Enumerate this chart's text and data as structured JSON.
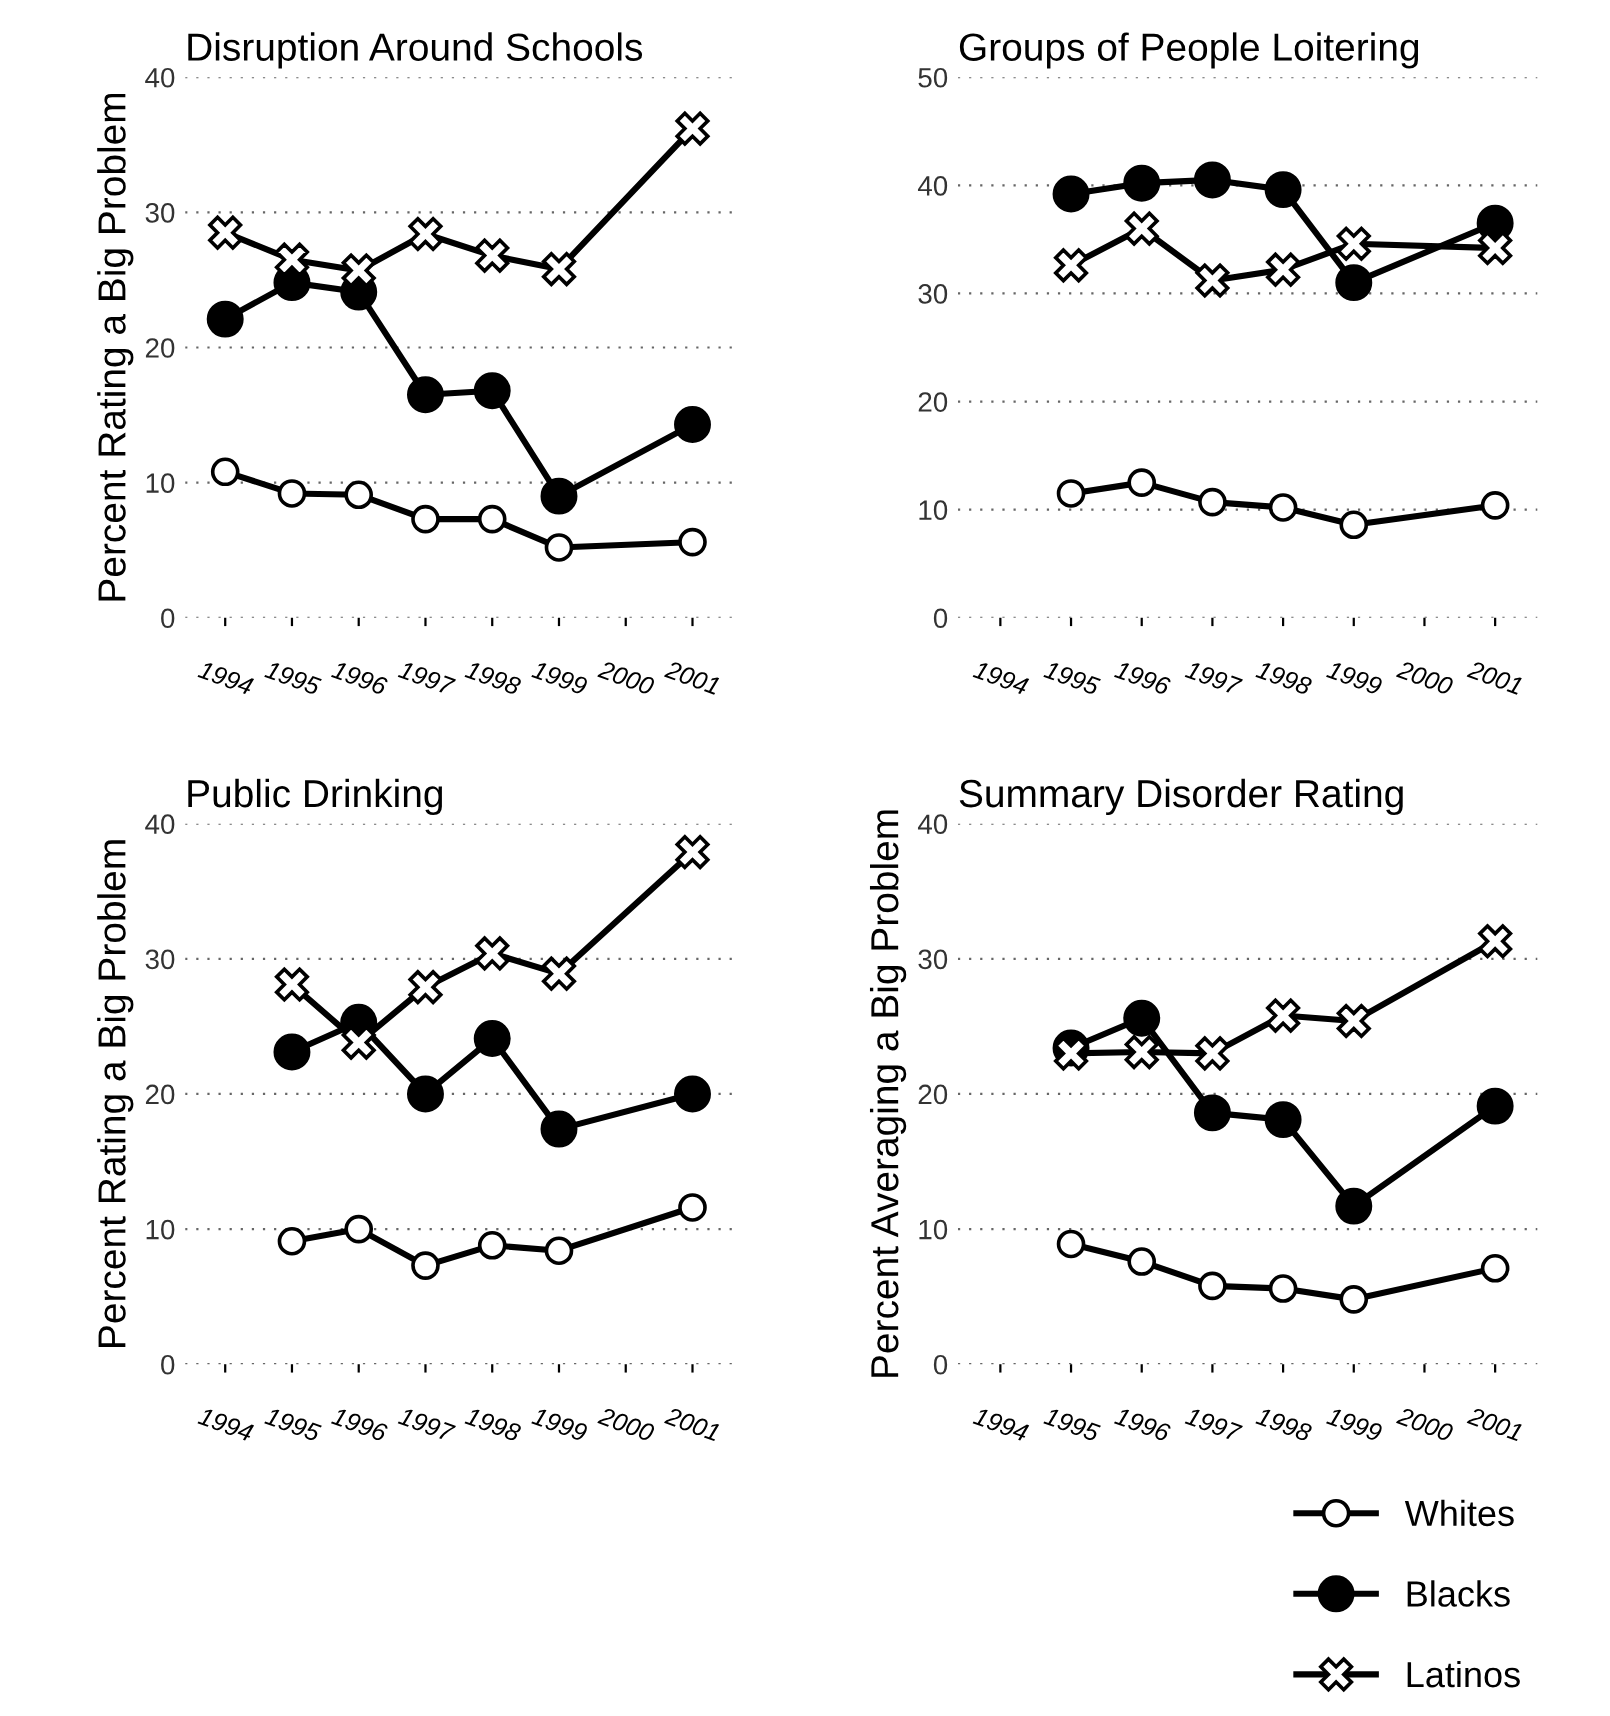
{
  "chart_data": [
    {
      "type": "line",
      "title": "Disruption Around Schools",
      "ylabel": "Percent Rating a Big Problem",
      "xlim": [
        1993.4,
        2001.6
      ],
      "xticks": [
        1994,
        1995,
        1996,
        1997,
        1998,
        1999,
        2000,
        2001
      ],
      "ylim": [
        0,
        40
      ],
      "yticks": [
        0,
        10,
        20,
        30,
        40
      ],
      "grid": "y",
      "line_style": "solid",
      "legend": "bottom right",
      "series": [
        {
          "name": "Whites",
          "color": "#ffffff",
          "marker": "circle",
          "x": [
            1994,
            1995,
            1996,
            1997,
            1998,
            1999,
            2001
          ],
          "values": [
            10.8,
            9.2,
            9.1,
            7.3,
            7.3,
            5.2,
            5.6
          ]
        },
        {
          "name": "Blacks",
          "color": "#000000",
          "marker": "circle",
          "x": [
            1994,
            1995,
            1996,
            1997,
            1998,
            1999,
            2001
          ],
          "values": [
            22.1,
            24.8,
            24.1,
            16.5,
            16.8,
            9.0,
            14.3
          ]
        },
        {
          "name": "Latinos",
          "color": "#ffffff",
          "marker": "cross",
          "x": [
            1994,
            1995,
            1996,
            1997,
            1998,
            1999,
            2001
          ],
          "values": [
            28.5,
            26.5,
            25.7,
            28.4,
            26.8,
            25.8,
            36.2
          ]
        }
      ]
    },
    {
      "type": "line",
      "title": "Groups of People Loitering",
      "xlim": [
        1993.4,
        2001.6
      ],
      "xticks": [
        1994,
        1995,
        1996,
        1997,
        1998,
        1999,
        2000,
        2001
      ],
      "ylim": [
        0,
        50
      ],
      "yticks": [
        0,
        10,
        20,
        30,
        40,
        50
      ],
      "grid": "y",
      "line_style": "solid",
      "series": [
        {
          "color": "#ffffff",
          "marker": "circle",
          "x": [
            1995,
            1996,
            1997,
            1998,
            1999,
            2001
          ],
          "values": [
            11.5,
            12.5,
            10.7,
            10.2,
            8.6,
            10.4
          ]
        },
        {
          "color": "#000000",
          "marker": "circle",
          "x": [
            1995,
            1996,
            1997,
            1998,
            1999,
            2001
          ],
          "values": [
            39.2,
            40.2,
            40.5,
            39.6,
            31.0,
            36.5
          ]
        },
        {
          "color": "#ffffff",
          "marker": "cross",
          "x": [
            1995,
            1996,
            1997,
            1998,
            1999,
            2001
          ],
          "values": [
            32.6,
            36.0,
            31.2,
            32.2,
            34.6,
            34.2
          ]
        }
      ]
    },
    {
      "type": "line",
      "title": "Public Drinking",
      "ylabel": "Percent Rating a Big Problem",
      "xlim": [
        1993.4,
        2001.6
      ],
      "xticks": [
        1994,
        1995,
        1996,
        1997,
        1998,
        1999,
        2000,
        2001
      ],
      "ylim": [
        0,
        40
      ],
      "yticks": [
        0,
        10,
        20,
        30,
        40
      ],
      "grid": "y",
      "line_style": "solid",
      "series": [
        {
          "color": "#ffffff",
          "marker": "circle",
          "x": [
            1995,
            1996,
            1997,
            1998,
            1999,
            2001
          ],
          "values": [
            9.1,
            10.0,
            7.3,
            8.8,
            8.4,
            11.6
          ]
        },
        {
          "color": "#000000",
          "marker": "circle",
          "x": [
            1995,
            1996,
            1997,
            1998,
            1999,
            2001
          ],
          "values": [
            23.1,
            25.3,
            20.0,
            24.1,
            17.4,
            20.0
          ]
        },
        {
          "color": "#ffffff",
          "marker": "cross",
          "x": [
            1995,
            1996,
            1997,
            1998,
            1999,
            2001
          ],
          "values": [
            28.1,
            23.8,
            27.9,
            30.4,
            28.9,
            37.9
          ]
        }
      ]
    },
    {
      "type": "line",
      "title": "Summary Disorder Rating",
      "ylabel": "Percent Averaging a Big Problem",
      "xlim": [
        1993.4,
        2001.6
      ],
      "xticks": [
        1994,
        1995,
        1996,
        1997,
        1998,
        1999,
        2000,
        2001
      ],
      "ylim": [
        0,
        40
      ],
      "yticks": [
        0,
        10,
        20,
        30,
        40
      ],
      "grid": "y",
      "line_style": "solid",
      "series": [
        {
          "color": "#ffffff",
          "marker": "circle",
          "x": [
            1995,
            1996,
            1997,
            1998,
            1999,
            2001
          ],
          "values": [
            8.9,
            7.6,
            5.8,
            5.6,
            4.8,
            7.1
          ]
        },
        {
          "color": "#000000",
          "marker": "circle",
          "x": [
            1995,
            1996,
            1997,
            1998,
            1999,
            2001
          ],
          "values": [
            23.4,
            25.6,
            18.6,
            18.1,
            11.7,
            19.1
          ]
        },
        {
          "color": "#ffffff",
          "marker": "cross",
          "x": [
            1995,
            1996,
            1997,
            1998,
            1999,
            2001
          ],
          "values": [
            23.0,
            23.1,
            23.0,
            25.8,
            25.4,
            31.3
          ]
        }
      ]
    }
  ]
}
